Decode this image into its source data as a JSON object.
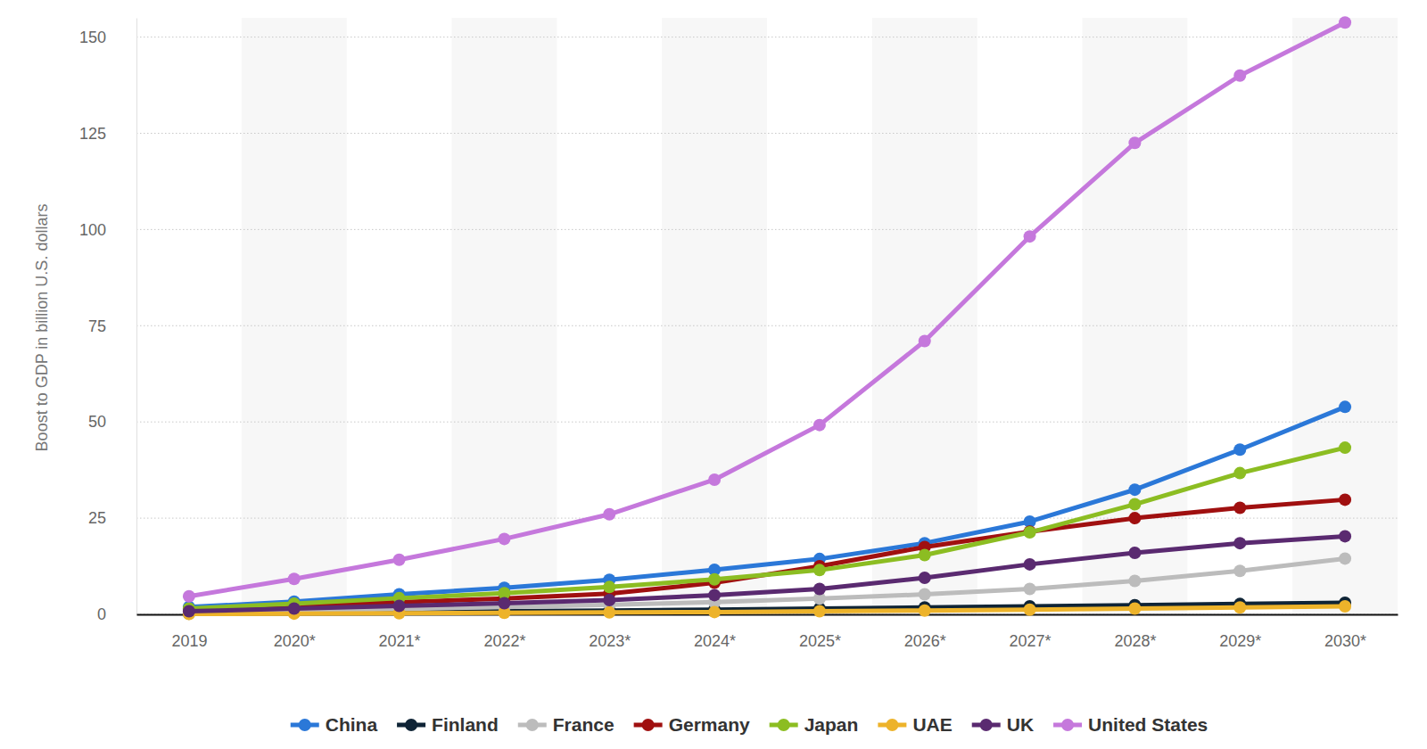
{
  "chart_data": {
    "type": "line",
    "y_label": "Boost to GDP in billion U.S. dollars",
    "categories": [
      "2019",
      "2020*",
      "2021*",
      "2022*",
      "2023*",
      "2024*",
      "2025*",
      "2026*",
      "2027*",
      "2028*",
      "2029*",
      "2030*"
    ],
    "ylim": [
      0,
      155
    ],
    "yticks": [
      0,
      25,
      50,
      75,
      100,
      125,
      150
    ],
    "grid": true,
    "legend": "bottom",
    "marker": "circle",
    "series": [
      {
        "name": "China",
        "color": "#2b78d8",
        "values": [
          1.9,
          3.3,
          5.2,
          6.9,
          9.0,
          11.6,
          14.4,
          18.5,
          24.1,
          32.4,
          42.8,
          53.9
        ]
      },
      {
        "name": "Finland",
        "color": "#0f2436",
        "values": [
          0.2,
          0.4,
          0.6,
          0.8,
          1.0,
          1.2,
          1.5,
          1.8,
          2.1,
          2.4,
          2.7,
          3.0
        ]
      },
      {
        "name": "France",
        "color": "#bcbcbc",
        "values": [
          0.5,
          0.9,
          1.4,
          1.9,
          2.5,
          3.2,
          4.1,
          5.2,
          6.6,
          8.7,
          11.3,
          14.5
        ]
      },
      {
        "name": "Germany",
        "color": "#a01010",
        "values": [
          1.2,
          2.2,
          3.2,
          4.1,
          5.4,
          8.2,
          12.5,
          17.5,
          21.5,
          25.0,
          27.7,
          29.8
        ]
      },
      {
        "name": "Japan",
        "color": "#8cbd22",
        "values": [
          1.5,
          2.8,
          4.2,
          5.5,
          7.1,
          9.1,
          11.5,
          15.4,
          21.3,
          28.6,
          36.7,
          43.3
        ]
      },
      {
        "name": "UAE",
        "color": "#edb32a",
        "values": [
          0.1,
          0.2,
          0.3,
          0.4,
          0.5,
          0.6,
          0.8,
          1.0,
          1.2,
          1.5,
          1.8,
          2.1
        ]
      },
      {
        "name": "UK",
        "color": "#5a2a70",
        "values": [
          0.8,
          1.5,
          2.2,
          2.9,
          3.7,
          5.0,
          6.6,
          9.5,
          13.0,
          16.0,
          18.5,
          20.3
        ]
      },
      {
        "name": "United States",
        "color": "#c578dc",
        "values": [
          4.7,
          9.2,
          14.2,
          19.6,
          26.0,
          35.0,
          49.2,
          71.0,
          98.2,
          122.5,
          140.0,
          153.8
        ]
      }
    ]
  }
}
